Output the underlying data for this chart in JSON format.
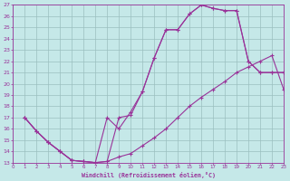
{
  "xlabel": "Windchill (Refroidissement éolien,°C)",
  "bg_color": "#c5e8e8",
  "line_color": "#993399",
  "grid_color": "#9bbfbf",
  "xmin": 0,
  "xmax": 23,
  "ymin": 13,
  "ymax": 27,
  "line1_x": [
    1,
    2,
    3,
    4,
    5,
    6,
    7,
    8,
    9,
    10,
    11,
    12,
    13,
    14,
    15,
    16,
    17,
    18,
    19,
    20,
    21,
    22,
    23
  ],
  "line1_y": [
    17.0,
    15.8,
    14.8,
    14.0,
    13.2,
    13.1,
    13.0,
    13.1,
    17.0,
    17.2,
    19.3,
    22.3,
    24.8,
    24.8,
    26.2,
    27.0,
    26.7,
    26.5,
    26.5,
    22.0,
    21.0,
    21.0,
    21.0
  ],
  "line2_x": [
    1,
    2,
    3,
    4,
    5,
    6,
    7,
    8,
    9,
    10,
    11,
    12,
    13,
    14,
    15,
    16,
    17,
    18,
    19,
    20,
    21,
    22,
    23
  ],
  "line2_y": [
    17.0,
    15.8,
    14.8,
    14.0,
    13.2,
    13.1,
    13.0,
    17.0,
    16.0,
    17.5,
    19.3,
    22.3,
    24.8,
    24.8,
    26.2,
    27.0,
    26.7,
    26.5,
    26.5,
    22.0,
    21.0,
    21.0,
    21.0
  ],
  "line3_x": [
    1,
    2,
    3,
    4,
    5,
    6,
    7,
    8,
    9,
    10,
    11,
    12,
    13,
    14,
    15,
    16,
    17,
    18,
    19,
    20,
    21,
    22,
    23
  ],
  "line3_y": [
    17.0,
    15.8,
    14.8,
    14.0,
    13.2,
    13.1,
    13.0,
    13.1,
    13.5,
    13.8,
    14.5,
    15.2,
    16.0,
    17.0,
    18.0,
    18.8,
    19.5,
    20.2,
    21.0,
    21.5,
    22.0,
    22.5,
    19.5
  ]
}
